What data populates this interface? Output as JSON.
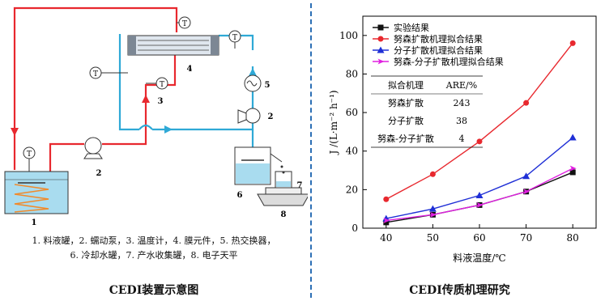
{
  "left_panel": {
    "title": "CEDI装置示意图",
    "caption_line1": "1. 料液罐，2. 蠕动泵，3. 温度计，4. 膜元件，5. 热交换器，",
    "caption_line2": "6. 冷却水罐，7. 产水收集罐，8. 电子天平",
    "thermometer_label": "T",
    "component_numbers": [
      "1",
      "2",
      "3",
      "4",
      "5",
      "2",
      "6",
      "7",
      "8"
    ],
    "colors": {
      "hot_loop": "#e8282e",
      "cold_loop": "#2fa9d6",
      "tank_fill": "#a9dcef"
    }
  },
  "right_panel": {
    "title": "CEDI传质机理研究"
  },
  "chart_data": {
    "type": "line",
    "x": [
      40,
      50,
      60,
      70,
      80
    ],
    "xlabel": "料液温度/℃",
    "ylabel": "J /(L·m⁻² h⁻¹)",
    "xlim": [
      35,
      85
    ],
    "ylim": [
      0,
      110
    ],
    "xticks": [
      40,
      50,
      60,
      70,
      80
    ],
    "yticks": [
      0,
      20,
      40,
      60,
      80,
      100
    ],
    "legend_position": "top-left",
    "series": [
      {
        "name": "实验结果",
        "color": "#111111",
        "marker": "square",
        "values": [
          3,
          7,
          12,
          19,
          29
        ]
      },
      {
        "name": "努森扩散机理拟合结果",
        "color": "#e8282e",
        "marker": "circle",
        "values": [
          15,
          28,
          45,
          65,
          96
        ]
      },
      {
        "name": "分子扩散机理拟合结果",
        "color": "#1f2fd6",
        "marker": "triangle",
        "values": [
          5,
          10,
          17,
          27,
          47
        ]
      },
      {
        "name": "努森-分子扩散机理拟合结果",
        "color": "#e020e0",
        "marker": "arrow-right",
        "values": [
          4,
          7,
          12,
          19,
          31
        ]
      }
    ],
    "table": {
      "headers": [
        "拟合机理",
        "ARE/%"
      ],
      "rows": [
        [
          "努森扩散",
          "243"
        ],
        [
          "分子扩散",
          "38"
        ],
        [
          "努森-分子扩散",
          "4"
        ]
      ]
    }
  }
}
